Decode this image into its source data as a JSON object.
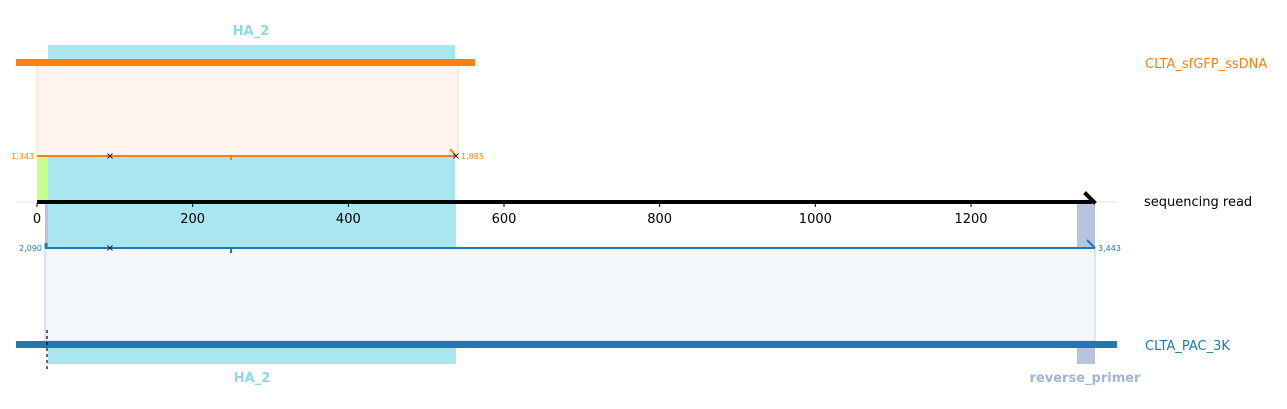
{
  "colors": {
    "top_read": "#ff7f0e",
    "top_fill": "#fff5ee",
    "bottom_read": "#1f77b4",
    "bottom_fill": "#f3f7fa",
    "ha_feature": "#aae6ef",
    "ha_label": "#8fd8e6",
    "green_feature": "#c8ff8c",
    "reverse_primer": "#b7c4df",
    "reverse_primer_label": "#a3b4d8",
    "axis": "#000000"
  },
  "top_read": {
    "name": "CLTA_sfGFP_ssDNA",
    "start_label": "1,343",
    "end_label": "1,885",
    "feature_label": "HA_2"
  },
  "axis": {
    "name": "sequencing read",
    "ticks": [
      "0",
      "200",
      "400",
      "600",
      "800",
      "1000",
      "1200"
    ],
    "tick_values": [
      0,
      200,
      400,
      600,
      800,
      1000,
      1200
    ],
    "range": [
      0,
      1358
    ]
  },
  "bottom_read": {
    "name": "CLTA_PAC_3K",
    "start_label": "2,090",
    "end_label": "3,443",
    "feature_labels": [
      "HA_2",
      "reverse_primer"
    ]
  }
}
